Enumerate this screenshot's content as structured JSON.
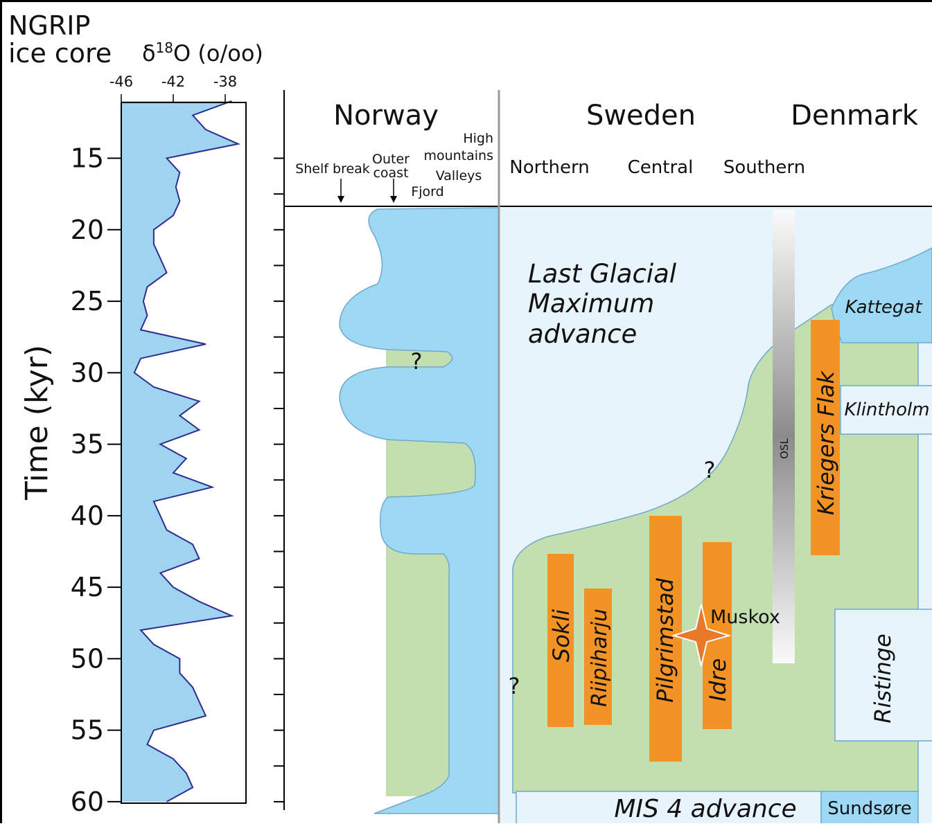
{
  "chart_data": {
    "type": "line",
    "title": [
      "NGRIP",
      "ice core"
    ],
    "x_label": {
      "symbol": "δ",
      "sup": "18",
      "rest": "O (o/oo)"
    },
    "y_label": "Time (kyr)",
    "xlim": [
      -46,
      -36.4
    ],
    "xticks": [
      -46,
      -42,
      -38
    ],
    "ylim": [
      11.1,
      60.1
    ],
    "yticks": [
      15,
      20,
      25,
      30,
      35,
      40,
      45,
      50,
      55,
      60
    ],
    "line_color": "#2b2f8f",
    "fill_color": "#9fd3ef",
    "time": [
      11,
      12,
      13,
      14,
      15,
      16,
      17,
      18,
      19,
      20,
      21,
      22,
      23,
      24,
      25,
      26,
      27,
      28,
      29,
      30,
      31,
      32,
      33,
      34,
      35,
      36,
      37,
      38,
      39,
      40,
      41,
      42,
      43,
      44,
      45,
      46,
      47,
      48,
      49,
      50,
      51,
      52,
      53,
      54,
      55,
      56,
      57,
      58,
      59,
      60
    ],
    "d18o": [
      -37.5,
      -40.5,
      -39.5,
      -37.0,
      -42.5,
      -41.5,
      -41.8,
      -41.5,
      -42.0,
      -43.5,
      -43.5,
      -43.0,
      -42.5,
      -44.0,
      -44.3,
      -44.0,
      -44.5,
      -39.5,
      -44.5,
      -45.0,
      -43.5,
      -40.0,
      -41.5,
      -40.0,
      -43.0,
      -41.0,
      -42.0,
      -39.0,
      -43.5,
      -43.0,
      -42.5,
      -40.5,
      -40.0,
      -43.0,
      -42.0,
      -40.0,
      -37.5,
      -44.5,
      -43.5,
      -41.5,
      -41.5,
      -40.5,
      -40.0,
      -39.5,
      -43.5,
      -44.0,
      -42.0,
      -41.0,
      -40.5,
      -42.5
    ]
  },
  "regions": {
    "countries": [
      "Norway",
      "Sweden",
      "Denmark"
    ],
    "norway_zones": {
      "shelf_break": "Shelf break",
      "outer_coast": [
        "Outer",
        "coast"
      ],
      "high_mountains": [
        "High",
        "mountains"
      ],
      "valleys": "Valleys",
      "fjord": "Fjord"
    },
    "sweden_zones": [
      "Northern",
      "Central",
      "Southern"
    ]
  },
  "labels": {
    "lgm": [
      "Last Glacial",
      "Maximum",
      "advance"
    ],
    "kattegat": "Kattegat",
    "klintholm": "Klintholm",
    "kriegers_flak": "Kriegers Flak",
    "osl": "OSL",
    "sokli": "Sokli",
    "riipiharju": "Riipiharju",
    "pilgrimstad": "Pilgrimstad",
    "idre": "Idre",
    "muskox": "Muskox",
    "ristinge": "Ristinge",
    "mis4": "MIS 4 advance",
    "sundsore": "Sundsøre",
    "questions": [
      "?",
      "?",
      "?"
    ]
  }
}
